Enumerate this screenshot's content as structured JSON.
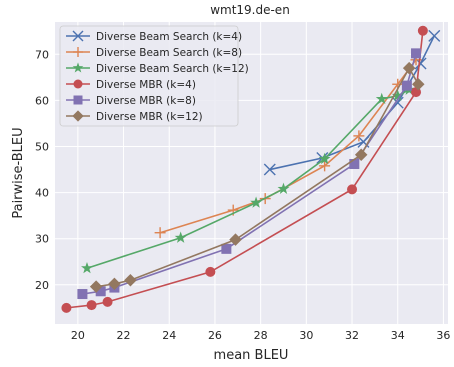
{
  "chart_data": {
    "type": "line",
    "title": "wmt19.de-en",
    "xlabel": "mean BLEU",
    "ylabel": "Pairwise-BLEU",
    "xlim": [
      19,
      36.2
    ],
    "ylim": [
      11.5,
      77
    ],
    "xticks": [
      20,
      22,
      24,
      26,
      28,
      30,
      32,
      34,
      36
    ],
    "yticks": [
      20,
      30,
      40,
      50,
      60,
      70
    ],
    "grid": true,
    "legend_position": "top-left",
    "series": [
      {
        "name": "Diverse Beam Search (k=4)",
        "color": "#4c72b0",
        "marker": "x",
        "points": [
          [
            28.4,
            45.0
          ],
          [
            30.7,
            47.5
          ],
          [
            32.5,
            51.0
          ],
          [
            34.0,
            59.5
          ],
          [
            35.0,
            68.0
          ],
          [
            35.6,
            74.0
          ]
        ]
      },
      {
        "name": "Diverse Beam Search (k=8)",
        "color": "#dd8452",
        "marker": "+",
        "points": [
          [
            23.6,
            31.3
          ],
          [
            26.8,
            36.2
          ],
          [
            28.2,
            38.7
          ],
          [
            30.8,
            45.8
          ],
          [
            32.3,
            52.3
          ],
          [
            34.0,
            63.5
          ],
          [
            34.8,
            68.8
          ]
        ]
      },
      {
        "name": "Diverse Beam Search (k=12)",
        "color": "#55a868",
        "marker": "star",
        "points": [
          [
            20.4,
            23.6
          ],
          [
            24.5,
            30.2
          ],
          [
            27.8,
            37.8
          ],
          [
            29.0,
            40.8
          ],
          [
            30.8,
            47.3
          ],
          [
            33.3,
            60.3
          ],
          [
            34.0,
            61.0
          ],
          [
            34.5,
            62.3
          ]
        ]
      },
      {
        "name": "Diverse MBR (k=4)",
        "color": "#c44e52",
        "marker": "circle",
        "points": [
          [
            19.5,
            15.0
          ],
          [
            20.6,
            15.6
          ],
          [
            21.3,
            16.3
          ],
          [
            25.8,
            22.8
          ],
          [
            32.0,
            40.7
          ],
          [
            34.8,
            61.8
          ],
          [
            35.1,
            75.1
          ]
        ]
      },
      {
        "name": "Diverse MBR (k=8)",
        "color": "#8172b2",
        "marker": "square",
        "points": [
          [
            20.2,
            18.0
          ],
          [
            21.0,
            18.6
          ],
          [
            21.6,
            19.4
          ],
          [
            26.5,
            27.8
          ],
          [
            32.1,
            46.2
          ],
          [
            34.4,
            63.2
          ],
          [
            34.8,
            70.2
          ]
        ]
      },
      {
        "name": "Diverse MBR (k=12)",
        "color": "#937860",
        "marker": "diamond",
        "points": [
          [
            20.8,
            19.6
          ],
          [
            21.6,
            20.2
          ],
          [
            22.3,
            21.0
          ],
          [
            26.9,
            29.8
          ],
          [
            32.4,
            48.2
          ],
          [
            34.5,
            67.0
          ],
          [
            34.9,
            63.5
          ]
        ]
      }
    ]
  }
}
